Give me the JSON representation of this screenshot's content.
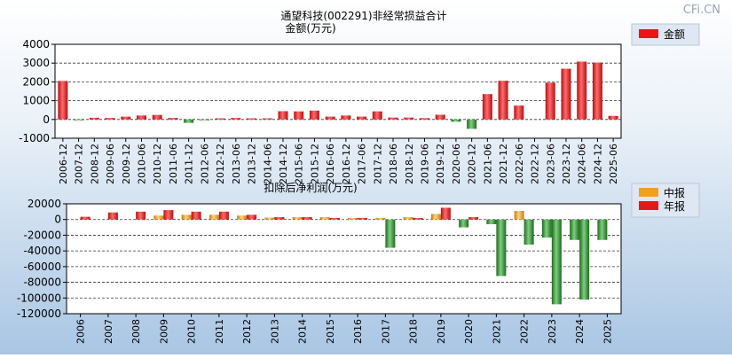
{
  "watermark": "CFi.CN",
  "colors": {
    "red": "#e8171a",
    "green": "#2f8a2f",
    "orange": "#f2a01a",
    "grid": "#333333",
    "plot_bg": "#ffffff"
  },
  "chart_data": [
    {
      "type": "bar",
      "title": "通望科技(002291)非经常损益合计",
      "ylabel": "金额(万元)",
      "xlabel": "",
      "legend": {
        "entries": [
          "金额"
        ],
        "position": "top-right"
      },
      "categories": [
        "2006-12",
        "2007-12",
        "2008-12",
        "2009-06",
        "2009-12",
        "2010-06",
        "2010-12",
        "2011-06",
        "2011-12",
        "2012-06",
        "2012-12",
        "2013-06",
        "2013-12",
        "2014-06",
        "2014-12",
        "2015-06",
        "2015-12",
        "2016-06",
        "2016-12",
        "2017-06",
        "2017-12",
        "2018-06",
        "2018-12",
        "2019-06",
        "2019-12",
        "2020-06",
        "2020-12",
        "2021-06",
        "2021-12",
        "2022-06",
        "2022-12",
        "2023-06",
        "2023-12",
        "2024-06",
        "2024-12",
        "2025-06"
      ],
      "values": [
        2050,
        -20,
        90,
        80,
        150,
        210,
        240,
        80,
        -180,
        -30,
        60,
        80,
        60,
        60,
        440,
        430,
        470,
        150,
        210,
        150,
        430,
        100,
        100,
        70,
        250,
        -120,
        -500,
        1350,
        2060,
        740,
        0,
        1960,
        2700,
        3080,
        3030,
        190
      ],
      "yticks": [
        -1000,
        0,
        1000,
        2000,
        3000,
        4000
      ],
      "ylim": [
        -1000,
        4000
      ],
      "grid": true
    },
    {
      "type": "bar",
      "title": "扣除后净利润(万元)",
      "legend": {
        "entries": [
          "中报",
          "年报"
        ],
        "position": "top-right"
      },
      "categories": [
        "2006",
        "2007",
        "2008",
        "2009",
        "2010",
        "2011",
        "2012",
        "2013",
        "2014",
        "2015",
        "2016",
        "2017",
        "2018",
        "2019",
        "2020",
        "2021",
        "2022",
        "2023",
        "2024",
        "2025"
      ],
      "series": [
        {
          "name": "中报",
          "values": [
            null,
            null,
            null,
            5000,
            6000,
            6000,
            5000,
            2500,
            3000,
            3000,
            2000,
            2000,
            3000,
            7000,
            -10000,
            -6000,
            11000,
            -23000,
            -26000,
            -26000
          ]
        },
        {
          "name": "年报",
          "values": [
            3500,
            9000,
            10000,
            12000,
            10000,
            10000,
            6000,
            3000,
            3000,
            2000,
            2000,
            -36000,
            2000,
            15000,
            3000,
            -72000,
            -32000,
            -108000,
            -102000,
            null
          ]
        }
      ],
      "yticks": [
        -120000,
        -100000,
        -80000,
        -60000,
        -40000,
        -20000,
        0,
        20000
      ],
      "ylim": [
        -120000,
        20000
      ],
      "grid": true
    }
  ]
}
